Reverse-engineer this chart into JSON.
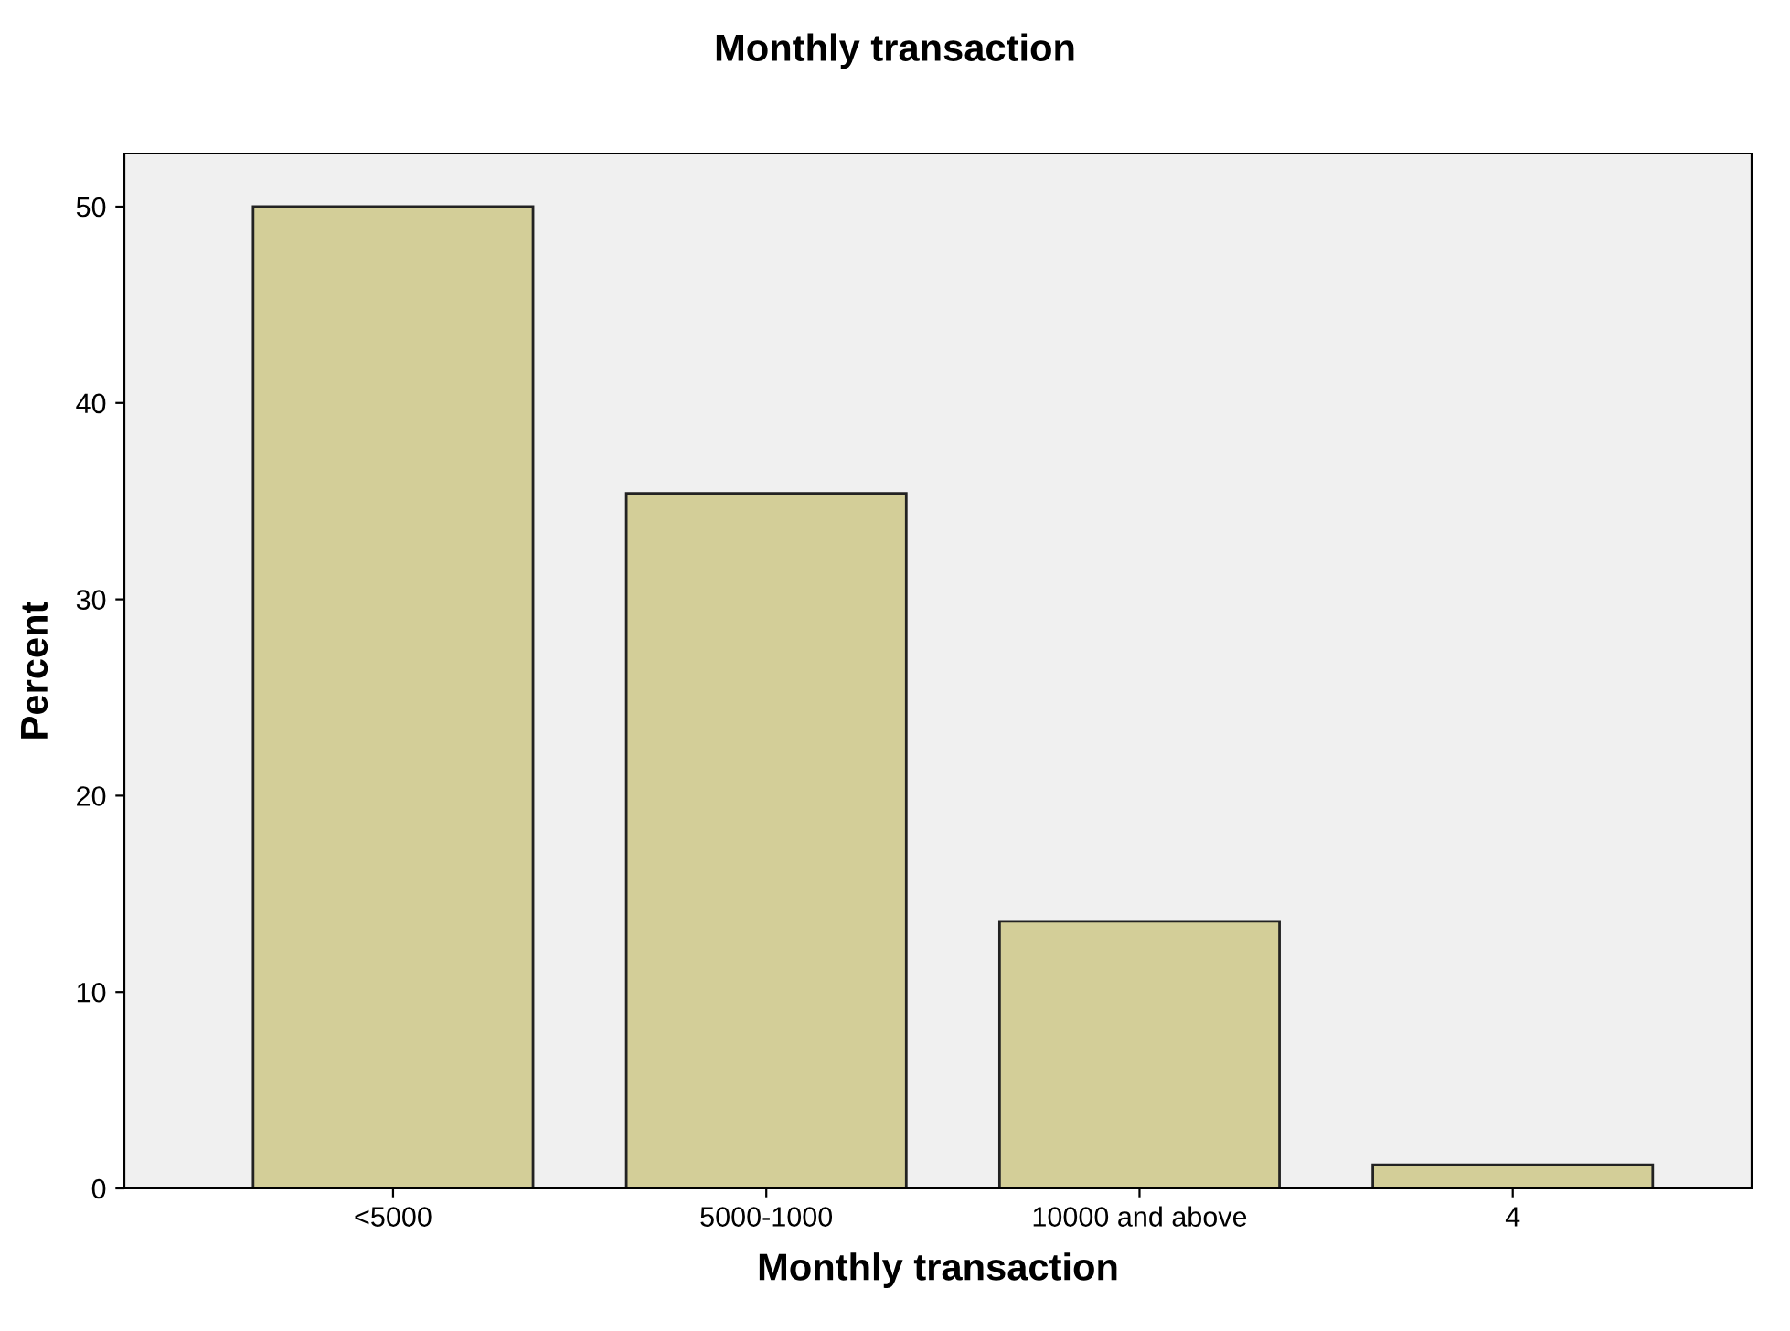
{
  "chart_data": {
    "type": "bar",
    "title": "Monthly transaction",
    "xlabel": "Monthly transaction",
    "ylabel": "Percent",
    "categories": [
      "<5000",
      "5000-1000",
      "10000 and above",
      "4"
    ],
    "values": [
      50.0,
      35.4,
      13.6,
      1.2
    ],
    "color": "#d3ce98",
    "ylim": [
      0,
      52.7
    ],
    "yticks": [
      0,
      10,
      20,
      30,
      40,
      50
    ],
    "grid": false
  }
}
